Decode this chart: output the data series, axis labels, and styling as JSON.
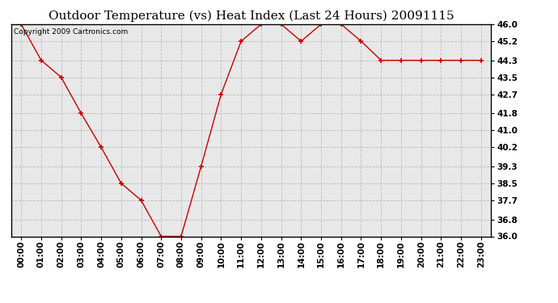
{
  "title": "Outdoor Temperature (vs) Heat Index (Last 24 Hours) 20091115",
  "copyright": "Copyright 2009 Cartronics.com",
  "x_labels": [
    "00:00",
    "01:00",
    "02:00",
    "03:00",
    "04:00",
    "05:00",
    "06:00",
    "07:00",
    "08:00",
    "09:00",
    "10:00",
    "11:00",
    "12:00",
    "13:00",
    "14:00",
    "15:00",
    "16:00",
    "17:00",
    "18:00",
    "19:00",
    "20:00",
    "21:00",
    "22:00",
    "23:00"
  ],
  "y_values": [
    46.0,
    44.3,
    43.5,
    41.8,
    40.2,
    38.5,
    37.7,
    36.0,
    36.0,
    39.3,
    42.7,
    45.2,
    46.0,
    46.0,
    45.2,
    46.0,
    46.0,
    45.2,
    44.3,
    44.3,
    44.3,
    44.3,
    44.3,
    44.3
  ],
  "ylim": [
    36.0,
    46.0
  ],
  "y_ticks": [
    36.0,
    36.8,
    37.7,
    38.5,
    39.3,
    40.2,
    41.0,
    41.8,
    42.7,
    43.5,
    44.3,
    45.2,
    46.0
  ],
  "line_color": "#cc0000",
  "marker": "+",
  "marker_color": "#cc0000",
  "bg_color": "#ffffff",
  "plot_bg_color": "#e8e8e8",
  "grid_color": "#bbbbbb",
  "title_fontsize": 11,
  "copyright_fontsize": 6.5,
  "tick_fontsize": 7.5,
  "fig_width": 6.9,
  "fig_height": 3.75,
  "dpi": 100
}
